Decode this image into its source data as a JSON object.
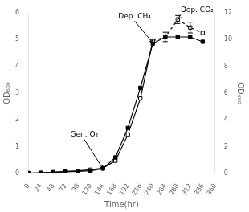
{
  "chart_data": {
    "type": "line",
    "x": [
      0,
      24,
      48,
      72,
      96,
      120,
      144,
      168,
      192,
      216,
      240,
      264,
      288,
      312,
      336
    ],
    "series": [
      {
        "color": "#000000",
        "marker": "square",
        "line_style": "solid",
        "axis": "y",
        "values": [
          0.02,
          0.02,
          0.04,
          0.06,
          0.08,
          0.1,
          0.18,
          0.6,
          1.7,
          3.2,
          4.85,
          5.1,
          5.1,
          5.1,
          4.92
        ]
      },
      {
        "color": "#000000",
        "marker": "open_square",
        "line_style": "solid",
        "axis": "y2",
        "values": [
          0.0,
          0.05,
          0.1,
          0.15,
          0.2,
          0.28,
          0.4,
          0.95,
          2.9,
          5.6,
          9.9,
          null,
          null,
          null,
          null
        ]
      },
      {
        "color": "#000000",
        "marker": "open_square",
        "line_style": "dashed",
        "axis": "y2",
        "values": [
          null,
          null,
          null,
          null,
          null,
          null,
          null,
          null,
          null,
          null,
          9.9,
          10.2,
          11.5,
          10.9,
          10.5
        ],
        "yerr": [
          null,
          null,
          null,
          null,
          null,
          null,
          null,
          null,
          null,
          null,
          null,
          0.35,
          0.3,
          0.4,
          null
        ]
      }
    ],
    "xlabel": "Time(hr)",
    "ylabel": "OD₆₀₀",
    "y2label": "OD₆₈₀",
    "xlim": [
      0,
      360
    ],
    "xticks": [
      0,
      24,
      48,
      72,
      96,
      120,
      144,
      168,
      192,
      216,
      240,
      264,
      288,
      312,
      336,
      360
    ],
    "ylim": [
      0,
      6
    ],
    "yticks": [
      0,
      1,
      2,
      3,
      4,
      5,
      6
    ],
    "y2lim": [
      0,
      12
    ],
    "y2ticks": [
      0,
      2,
      4,
      6,
      8,
      10,
      12
    ],
    "grid": false,
    "annotations": [
      {
        "text": "Gen. O₂",
        "x": 144,
        "y": 0.18,
        "text_x": 108,
        "text_y": 1.3,
        "axis": "y"
      },
      {
        "text": "Dep. CH₄",
        "x": 240,
        "y": 4.88,
        "text_x": 205,
        "text_y": 5.72,
        "axis": "y"
      },
      {
        "text": "Dep. CO₂",
        "x": 288,
        "y": 11.5,
        "text_x": 295,
        "text_y": 11.92,
        "axis": "y2"
      }
    ]
  }
}
